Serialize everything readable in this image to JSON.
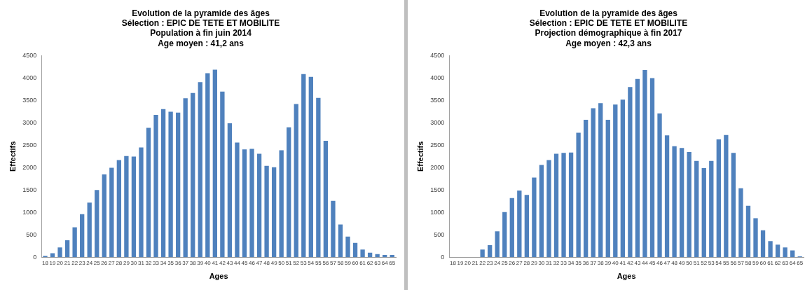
{
  "chart_data": [
    {
      "type": "bar",
      "title": "Evolution de la pyramide des âges",
      "subtitle": "Sélection : EPIC DE TETE ET MOBILITE\nPopulation à fin juin 2014\nAge moyen : 41,2 ans",
      "xlabel": "Ages",
      "ylabel": "Effectifs",
      "color": "#4f81bd",
      "categories": [
        "18",
        "19",
        "20",
        "21",
        "22",
        "23",
        "24",
        "25",
        "26",
        "27",
        "28",
        "29",
        "30",
        "31",
        "32",
        "33",
        "34",
        "35",
        "36",
        "37",
        "38",
        "39",
        "40",
        "41",
        "42",
        "43",
        "44",
        "45",
        "46",
        "47",
        "48",
        "49",
        "50",
        "51",
        "52",
        "53",
        "54",
        "55",
        "56",
        "57",
        "58",
        "59",
        "60",
        "61",
        "62",
        "63",
        "64",
        "65"
      ],
      "values": [
        30,
        90,
        220,
        380,
        670,
        960,
        1220,
        1500,
        1850,
        2000,
        2170,
        2260,
        2250,
        2450,
        2890,
        3180,
        3310,
        3250,
        3230,
        3550,
        3670,
        3910,
        4110,
        4190,
        3700,
        2990,
        2560,
        2410,
        2420,
        2310,
        2040,
        2010,
        2390,
        2900,
        3420,
        4090,
        4030,
        3560,
        2600,
        1260,
        730,
        460,
        320,
        170,
        100,
        70,
        50,
        50
      ],
      "ylim": [
        0,
        4500
      ],
      "yticks": [
        0,
        500,
        1000,
        1500,
        2000,
        2500,
        3000,
        3500,
        4000,
        4500
      ],
      "grid": false,
      "legend": false
    },
    {
      "type": "bar",
      "title": "Evolution de la pyramide des âges",
      "subtitle": "Sélection : EPIC DE TETE ET MOBILITE\nProjection démographique à fin 2017\nAge moyen : 42,3 ans",
      "xlabel": "Ages",
      "ylabel": "Effectifs",
      "color": "#4f81bd",
      "categories": [
        "18",
        "19",
        "20",
        "21",
        "22",
        "23",
        "24",
        "25",
        "26",
        "27",
        "28",
        "29",
        "30",
        "31",
        "32",
        "33",
        "34",
        "35",
        "36",
        "37",
        "38",
        "39",
        "40",
        "41",
        "42",
        "43",
        "44",
        "45",
        "46",
        "47",
        "48",
        "49",
        "50",
        "51",
        "52",
        "53",
        "54",
        "55",
        "56",
        "57",
        "58",
        "59",
        "60",
        "61",
        "62",
        "63",
        "64",
        "65"
      ],
      "values": [
        0,
        0,
        0,
        0,
        170,
        270,
        580,
        1010,
        1320,
        1490,
        1390,
        1780,
        2060,
        2170,
        2310,
        2330,
        2340,
        2780,
        3070,
        3330,
        3440,
        3070,
        3410,
        3520,
        3800,
        3980,
        4180,
        4000,
        3210,
        2720,
        2480,
        2440,
        2350,
        2150,
        1990,
        2150,
        2630,
        2730,
        2330,
        1540,
        1150,
        870,
        600,
        360,
        280,
        220,
        150,
        20
      ],
      "ylim": [
        0,
        4500
      ],
      "yticks": [
        0,
        500,
        1000,
        1500,
        2000,
        2500,
        3000,
        3500,
        4000,
        4500
      ],
      "grid": false,
      "legend": false
    }
  ]
}
